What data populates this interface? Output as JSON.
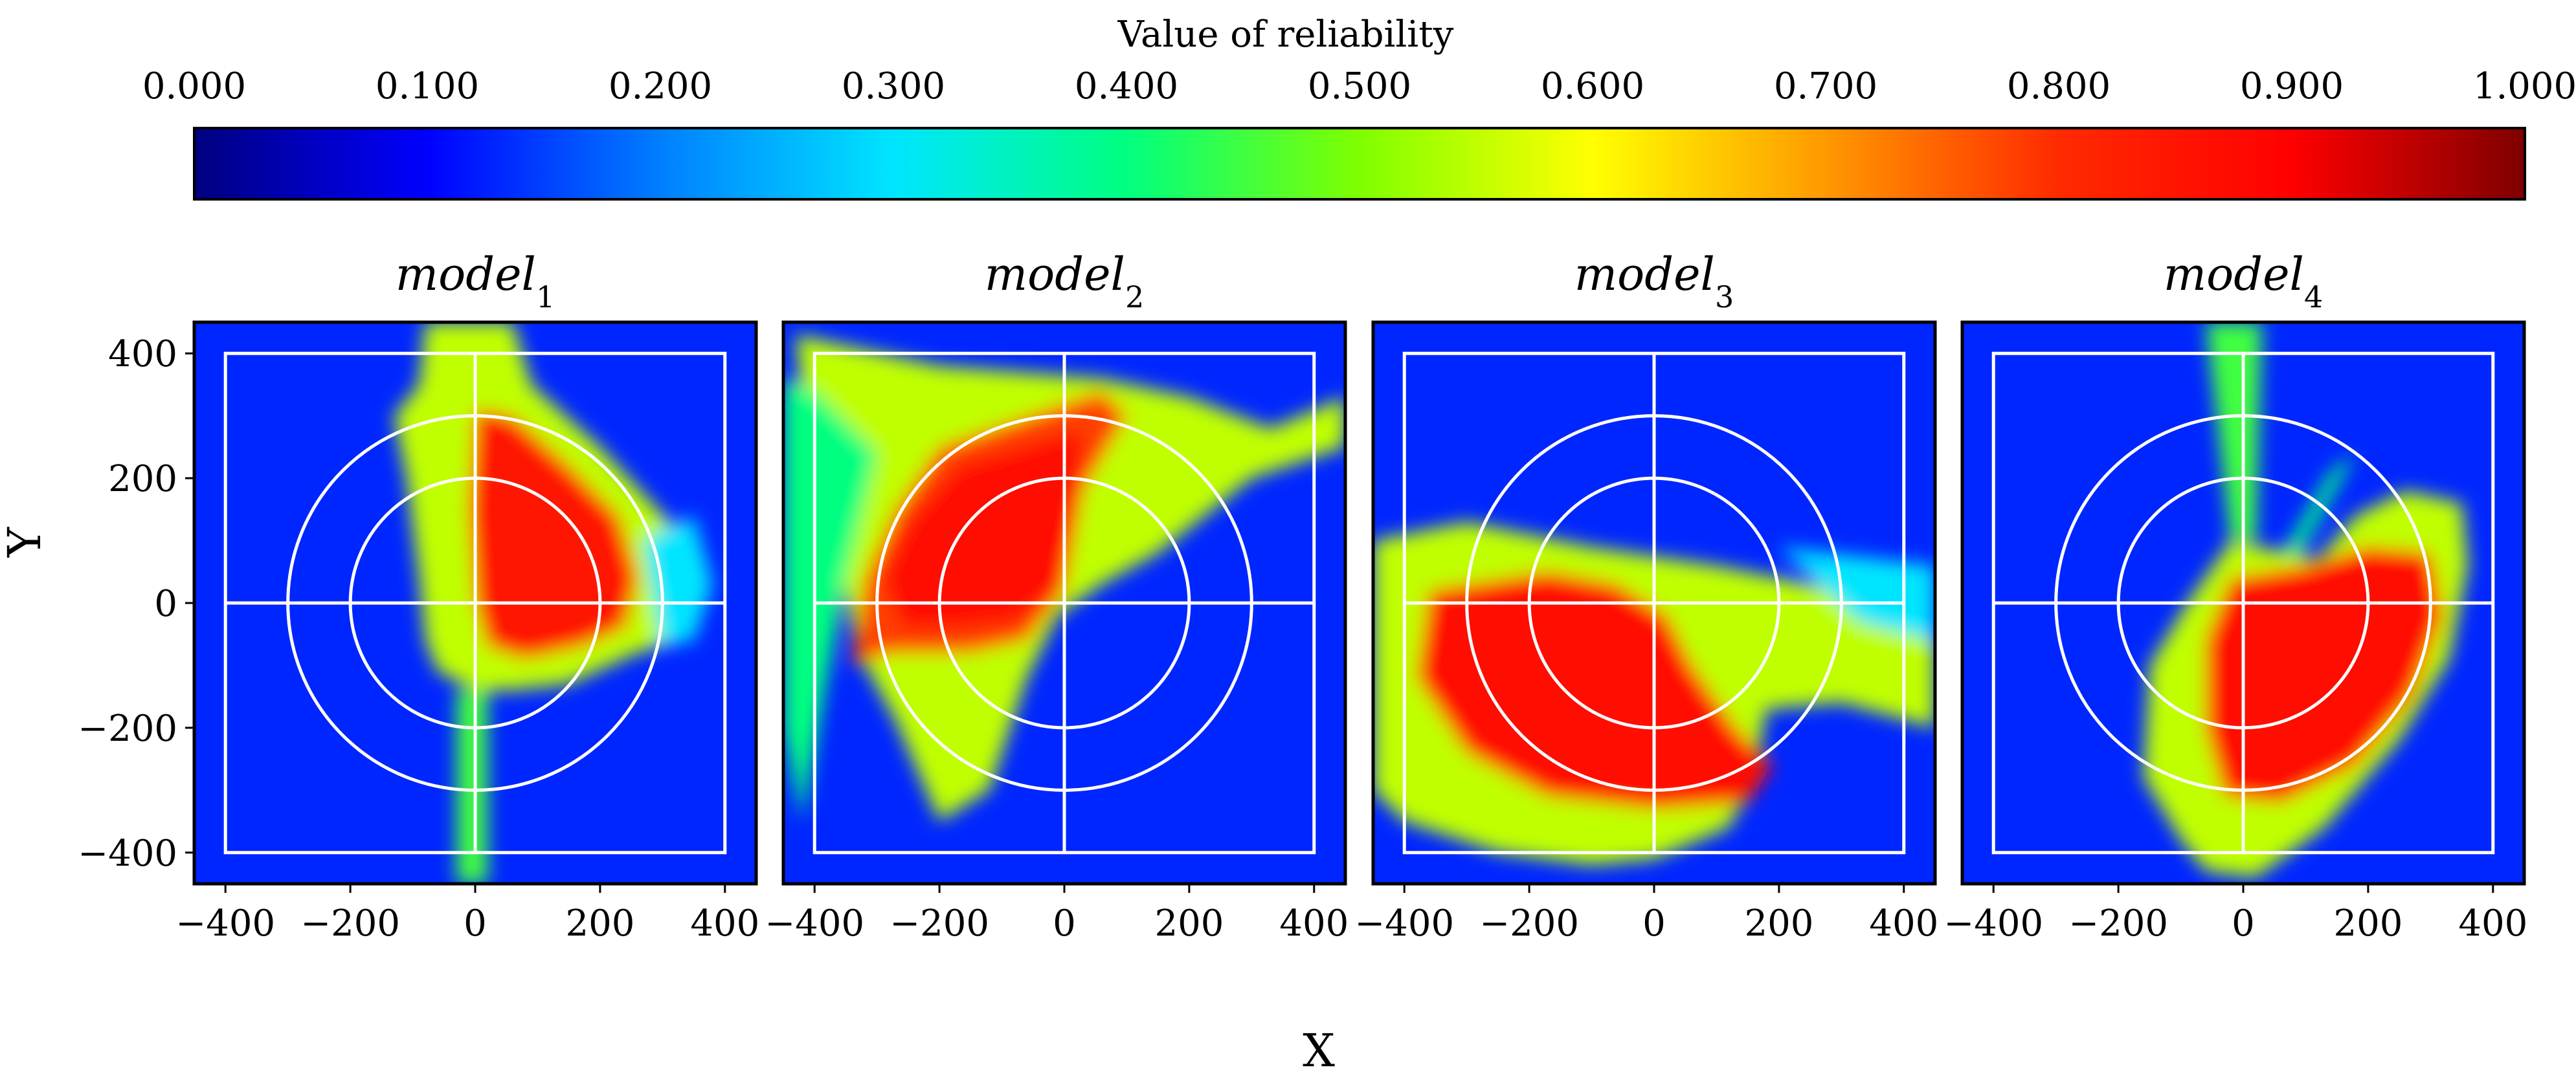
{
  "chart_data": {
    "type": "heatmap",
    "colorbar": {
      "title": "Value of reliability",
      "range": [
        0,
        1
      ],
      "ticks": [
        "0.000",
        "0.100",
        "0.200",
        "0.300",
        "0.400",
        "0.500",
        "0.600",
        "0.700",
        "0.800",
        "0.900",
        "1.000"
      ],
      "colormap": [
        "#00007f",
        "#0000ff",
        "#007fff",
        "#00e5ff",
        "#00ff80",
        "#7fff00",
        "#ffff00",
        "#ff9900",
        "#ff2a00",
        "#ff0000",
        "#7f0000"
      ]
    },
    "xlabel": "X",
    "ylabel": "Y",
    "xlim": [
      -450,
      450
    ],
    "ylim": [
      -450,
      450
    ],
    "xticks": [
      "−400",
      "−200",
      "0",
      "200",
      "400"
    ],
    "yticks": [
      "400",
      "200",
      "0",
      "−200",
      "−400"
    ],
    "overlay": {
      "square_half_size": 400,
      "circle_radii": [
        200,
        300
      ],
      "crosshair_at": [
        0,
        0
      ]
    },
    "background_value": 0.13,
    "panels": [
      {
        "title": "model",
        "subscript": "1",
        "regions": [
          {
            "value": 0.55,
            "polygon": [
              [
                -80,
                450
              ],
              [
                60,
                450
              ],
              [
                90,
                350
              ],
              [
                200,
                250
              ],
              [
                320,
                120
              ],
              [
                360,
                20
              ],
              [
                330,
                -60
              ],
              [
                260,
                -80
              ],
              [
                150,
                -130
              ],
              [
                60,
                -140
              ],
              [
                0,
                -140
              ],
              [
                -60,
                -110
              ],
              [
                -80,
                -60
              ],
              [
                -90,
                40
              ],
              [
                -110,
                200
              ],
              [
                -130,
                300
              ],
              [
                -90,
                350
              ]
            ]
          },
          {
            "value": 0.45,
            "polygon": [
              [
                -30,
                -140
              ],
              [
                20,
                -140
              ],
              [
                20,
                -450
              ],
              [
                -30,
                -450
              ]
            ]
          },
          {
            "value": 0.3,
            "polygon": [
              [
                270,
                100
              ],
              [
                350,
                140
              ],
              [
                380,
                30
              ],
              [
                350,
                -60
              ],
              [
                300,
                -70
              ]
            ]
          },
          {
            "value": 0.85,
            "polygon": [
              [
                0,
                310
              ],
              [
                60,
                300
              ],
              [
                150,
                220
              ],
              [
                230,
                140
              ],
              [
                260,
                40
              ],
              [
                240,
                -40
              ],
              [
                170,
                -70
              ],
              [
                80,
                -90
              ],
              [
                20,
                -70
              ],
              [
                0,
                0
              ],
              [
                -10,
                150
              ]
            ]
          }
        ]
      },
      {
        "title": "model",
        "subscript": "2",
        "regions": [
          {
            "value": 0.55,
            "polygon": [
              [
                -430,
                430
              ],
              [
                -200,
                380
              ],
              [
                60,
                360
              ],
              [
                200,
                330
              ],
              [
                330,
                280
              ],
              [
                450,
                330
              ],
              [
                450,
                250
              ],
              [
                300,
                200
              ],
              [
                150,
                80
              ],
              [
                60,
                30
              ],
              [
                -10,
                -20
              ],
              [
                -60,
                -120
              ],
              [
                -120,
                -300
              ],
              [
                -200,
                -350
              ],
              [
                -270,
                -190
              ],
              [
                -330,
                -80
              ],
              [
                -380,
                160
              ],
              [
                -420,
                330
              ]
            ]
          },
          {
            "value": 0.4,
            "polygon": [
              [
                -400,
                340
              ],
              [
                -300,
                240
              ],
              [
                -350,
                40
              ],
              [
                -380,
                -120
              ],
              [
                -420,
                -350
              ],
              [
                -450,
                -200
              ],
              [
                -450,
                360
              ]
            ]
          },
          {
            "value": 0.78,
            "polygon": [
              [
                -200,
                250
              ],
              [
                60,
                340
              ],
              [
                100,
                300
              ],
              [
                30,
                180
              ],
              [
                0,
                20
              ],
              [
                -60,
                -60
              ],
              [
                -150,
                -80
              ],
              [
                -280,
                -80
              ],
              [
                -340,
                -100
              ],
              [
                -320,
                40
              ],
              [
                -270,
                150
              ]
            ]
          },
          {
            "value": 0.86,
            "polygon": [
              [
                -170,
                220
              ],
              [
                30,
                280
              ],
              [
                20,
                150
              ],
              [
                -10,
                20
              ],
              [
                -80,
                -30
              ],
              [
                -170,
                -40
              ],
              [
                -260,
                -40
              ],
              [
                -290,
                40
              ],
              [
                -250,
                130
              ]
            ]
          }
        ]
      },
      {
        "title": "model",
        "subscript": "3",
        "regions": [
          {
            "value": 0.55,
            "polygon": [
              [
                -450,
                100
              ],
              [
                -300,
                130
              ],
              [
                -100,
                90
              ],
              [
                100,
                60
              ],
              [
                300,
                20
              ],
              [
                450,
                -20
              ],
              [
                450,
                -200
              ],
              [
                300,
                -160
              ],
              [
                180,
                -170
              ],
              [
                160,
                -280
              ],
              [
                120,
                -360
              ],
              [
                0,
                -410
              ],
              [
                -100,
                -420
              ],
              [
                -250,
                -400
              ],
              [
                -400,
                -350
              ],
              [
                -450,
                -300
              ]
            ]
          },
          {
            "value": 0.3,
            "polygon": [
              [
                200,
                90
              ],
              [
                450,
                60
              ],
              [
                450,
                -60
              ],
              [
                330,
                -30
              ]
            ]
          },
          {
            "value": 0.86,
            "polygon": [
              [
                -360,
                20
              ],
              [
                -170,
                50
              ],
              [
                -60,
                30
              ],
              [
                20,
                -20
              ],
              [
                60,
                -100
              ],
              [
                130,
                -200
              ],
              [
                190,
                -260
              ],
              [
                150,
                -320
              ],
              [
                0,
                -330
              ],
              [
                -170,
                -310
              ],
              [
                -300,
                -240
              ],
              [
                -380,
                -120
              ]
            ]
          }
        ]
      },
      {
        "title": "model",
        "subscript": "4",
        "regions": [
          {
            "value": 0.45,
            "polygon": [
              [
                -60,
                450
              ],
              [
                30,
                450
              ],
              [
                20,
                100
              ],
              [
                -20,
                100
              ]
            ]
          },
          {
            "value": 0.4,
            "polygon": [
              [
                140,
                210
              ],
              [
                180,
                240
              ],
              [
                80,
                60
              ],
              [
                40,
                40
              ]
            ]
          },
          {
            "value": 0.55,
            "polygon": [
              [
                -20,
                100
              ],
              [
                120,
                70
              ],
              [
                180,
                140
              ],
              [
                260,
                180
              ],
              [
                350,
                160
              ],
              [
                360,
                60
              ],
              [
                330,
                -90
              ],
              [
                250,
                -220
              ],
              [
                130,
                -360
              ],
              [
                20,
                -440
              ],
              [
                -60,
                -430
              ],
              [
                -100,
                -380
              ],
              [
                -160,
                -280
              ],
              [
                -150,
                -100
              ],
              [
                -90,
                0
              ]
            ]
          },
          {
            "value": 0.86,
            "polygon": [
              [
                -20,
                40
              ],
              [
                100,
                60
              ],
              [
                200,
                90
              ],
              [
                300,
                80
              ],
              [
                320,
                -20
              ],
              [
                270,
                -150
              ],
              [
                180,
                -260
              ],
              [
                60,
                -320
              ],
              [
                -30,
                -310
              ],
              [
                -60,
                -200
              ],
              [
                -60,
                -60
              ]
            ]
          }
        ]
      }
    ]
  }
}
